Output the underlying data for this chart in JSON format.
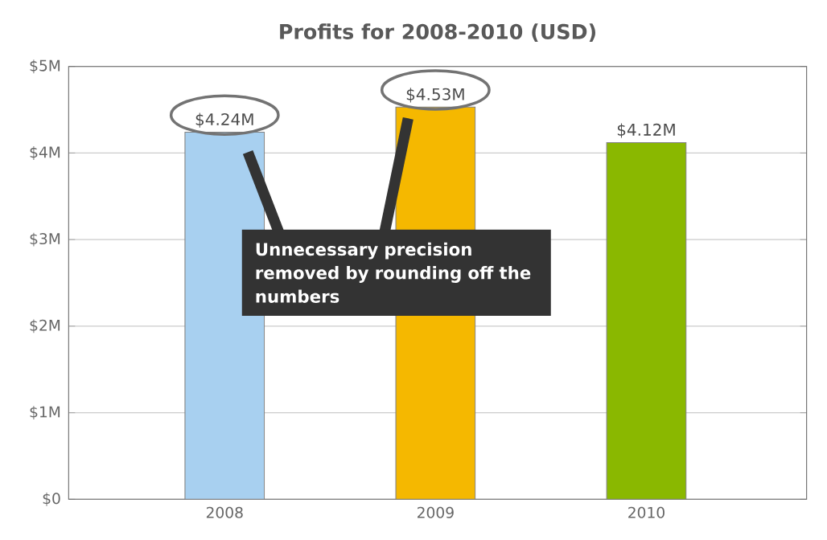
{
  "chart_data": {
    "type": "bar",
    "title": "Profits for 2008-2010 (USD)",
    "categories": [
      "2008",
      "2009",
      "2010"
    ],
    "values": [
      4.24,
      4.53,
      4.12
    ],
    "colors": [
      "#a8d0f0",
      "#f5b800",
      "#8ab800"
    ],
    "value_labels": [
      "$4.24M",
      "$4.53M",
      "$4.12M"
    ],
    "ylim": [
      0,
      5
    ],
    "yticks": [
      {
        "value": 0,
        "label": "$0"
      },
      {
        "value": 1,
        "label": "$1M"
      },
      {
        "value": 2,
        "label": "$2M"
      },
      {
        "value": 3,
        "label": "$3M"
      },
      {
        "value": 4,
        "label": "$4M"
      },
      {
        "value": 5,
        "label": "$5M"
      }
    ],
    "grid": "y",
    "annotations": [
      "Unnecessary precision removed by rounding off the numbers"
    ]
  }
}
